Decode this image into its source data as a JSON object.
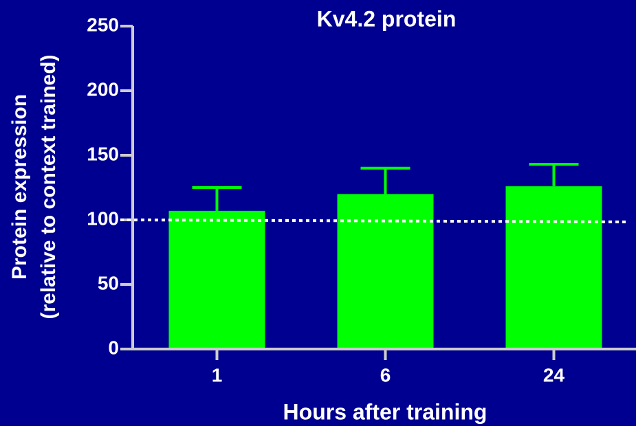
{
  "chart_data": {
    "type": "bar",
    "title": "Kv4.2 protein",
    "xlabel": "Hours after training",
    "ylabel": [
      "Protein expression",
      "(relative to context trained)"
    ],
    "categories": [
      "1",
      "6",
      "24"
    ],
    "values": [
      107,
      120,
      126
    ],
    "errors": [
      18,
      20,
      17
    ],
    "color": "#00ff00",
    "reference_line": 100,
    "ylim": [
      0,
      250
    ],
    "yticks": [
      0,
      50,
      100,
      150,
      200,
      250
    ]
  }
}
